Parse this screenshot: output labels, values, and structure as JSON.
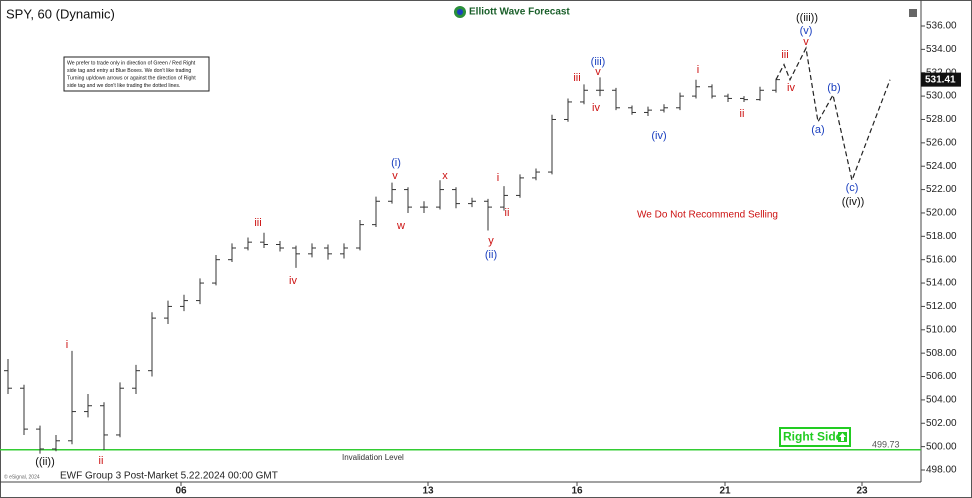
{
  "chart_data": {
    "type": "candlestick",
    "title": "SPY, 60 (Dynamic)",
    "brand": "Elliott Wave Forecast",
    "footer": "EWF Group 3 Post-Market 5.22.2024 00:00 GMT",
    "copyright": "© eSignal, 2024",
    "note": [
      "We prefer to trade only in direction of Green / Red Right",
      "side tag and entry at Blue Boxes. We don't like trading",
      "Turning up/down arrows or against the direction of Right",
      "side tag and we don't like trading the dotted lines."
    ],
    "warning": "We Do Not Recommend Selling",
    "invalidation": {
      "label": "Invalidation Level",
      "value": 499.73,
      "value_label": "499.73",
      "color": "#33cc33"
    },
    "right_side": {
      "label": "Right Side",
      "color": "#22cc22"
    },
    "last_price": 531.41,
    "last_price_label": "531.41",
    "color": "#333333",
    "open": [
      506.5,
      505,
      501.5,
      499.8,
      500.5,
      503,
      503.5,
      501,
      505,
      506.5,
      511,
      512,
      512.5,
      514,
      516,
      517,
      517.5,
      517.3,
      517,
      516.5,
      517,
      516.5,
      517,
      519,
      521,
      522,
      520.5,
      520.5,
      522,
      520.8,
      521,
      520.5,
      521.5,
      523,
      523.5,
      528,
      529.5,
      530.5,
      530.5,
      529,
      528.6,
      528.8,
      529,
      530,
      530.8,
      530,
      529.8,
      529.7,
      530.5
    ],
    "high": [
      507.5,
      505.3,
      501.8,
      501,
      508.2,
      504.5,
      503.8,
      505.5,
      507,
      511.5,
      512.5,
      513,
      514.4,
      516.4,
      517.4,
      517.9,
      518.3,
      517.6,
      517.2,
      517.4,
      517.3,
      517.4,
      519.4,
      521.4,
      522.6,
      522.2,
      521,
      522.8,
      522.2,
      521.3,
      521.2,
      522.3,
      523.3,
      523.8,
      528.4,
      529.8,
      531,
      531.6,
      530.7,
      529.2,
      529.1,
      529.3,
      530.3,
      531.4,
      531,
      530.2,
      530,
      530.8,
      531.5
    ],
    "low": [
      504.5,
      501,
      499.4,
      499.6,
      500.2,
      502.5,
      499.7,
      500.8,
      504.5,
      506,
      510.5,
      511.6,
      512.2,
      513.8,
      515.8,
      516.8,
      517,
      516.7,
      515.3,
      516.2,
      516,
      516.1,
      516.8,
      518.8,
      520.8,
      520,
      520,
      520.3,
      520.4,
      520.5,
      518.5,
      520.2,
      521.3,
      522.8,
      523.3,
      527.8,
      529.3,
      530,
      528.8,
      528.4,
      528.3,
      528.6,
      528.8,
      529.8,
      529.8,
      529.5,
      529.5,
      529.6,
      530.3
    ],
    "close": [
      505,
      501.5,
      499.8,
      500.5,
      503,
      503.5,
      501,
      505,
      506.5,
      511,
      512,
      512.5,
      514,
      516,
      517,
      517.5,
      517.3,
      517,
      516.5,
      517,
      516.5,
      517,
      519,
      521,
      522,
      520.5,
      520.5,
      522,
      520.8,
      521,
      520.5,
      521.5,
      523,
      523.5,
      528,
      529.5,
      530.5,
      530.5,
      529,
      528.6,
      528.8,
      529,
      530,
      530.8,
      530,
      529.8,
      529.7,
      530.5,
      531.41
    ],
    "projection": [
      531.41,
      532.7,
      531.4,
      534.1,
      527.8,
      530.1,
      522.8,
      531.4
    ],
    "waves": [
      {
        "text": "((ii))",
        "color": "#111111"
      },
      {
        "text": "i",
        "color": "#cc1111"
      },
      {
        "text": "ii",
        "color": "#cc1111"
      },
      {
        "text": "iii",
        "color": "#cc1111"
      },
      {
        "text": "iv",
        "color": "#cc1111"
      },
      {
        "text": "(i)",
        "color": "#1a3fbf"
      },
      {
        "text": "v",
        "color": "#cc1111"
      },
      {
        "text": "w",
        "color": "#cc1111"
      },
      {
        "text": "x",
        "color": "#cc1111"
      },
      {
        "text": "y",
        "color": "#cc1111"
      },
      {
        "text": "(ii)",
        "color": "#1a3fbf"
      },
      {
        "text": "i",
        "color": "#cc1111"
      },
      {
        "text": "ii",
        "color": "#cc1111"
      },
      {
        "text": "iii",
        "color": "#cc1111"
      },
      {
        "text": "v",
        "color": "#cc1111"
      },
      {
        "text": "(iii)",
        "color": "#1a3fbf"
      },
      {
        "text": "iv",
        "color": "#cc1111"
      },
      {
        "text": "(iv)",
        "color": "#1a3fbf"
      },
      {
        "text": "i",
        "color": "#cc1111"
      },
      {
        "text": "ii",
        "color": "#cc1111"
      },
      {
        "text": "iii",
        "color": "#cc1111"
      },
      {
        "text": "iv",
        "color": "#cc1111"
      },
      {
        "text": "v",
        "color": "#cc1111"
      },
      {
        "text": "(v)",
        "color": "#1a3fbf"
      },
      {
        "text": "((iii))",
        "color": "#111111"
      },
      {
        "text": "(a)",
        "color": "#1a3fbf"
      },
      {
        "text": "(b)",
        "color": "#1a3fbf"
      },
      {
        "text": "(c)",
        "color": "#1a3fbf"
      },
      {
        "text": "((iv))",
        "color": "#111111"
      }
    ],
    "xtick_labels": [
      "06",
      "13",
      "16",
      "21",
      "23"
    ],
    "ylim": [
      498,
      536
    ],
    "yticks": [
      {
        "value": 498,
        "label": "498.00"
      },
      {
        "value": 500,
        "label": "500.00"
      },
      {
        "value": 502,
        "label": "502.00"
      },
      {
        "value": 504,
        "label": "504.00"
      },
      {
        "value": 506,
        "label": "506.00"
      },
      {
        "value": 508,
        "label": "508.00"
      },
      {
        "value": 510,
        "label": "510.00"
      },
      {
        "value": 512,
        "label": "512.00"
      },
      {
        "value": 514,
        "label": "514.00"
      },
      {
        "value": 516,
        "label": "516.00"
      },
      {
        "value": 518,
        "label": "518.00"
      },
      {
        "value": 520,
        "label": "520.00"
      },
      {
        "value": 522,
        "label": "522.00"
      },
      {
        "value": 524,
        "label": "524.00"
      },
      {
        "value": 526,
        "label": "526.00"
      },
      {
        "value": 528,
        "label": "528.00"
      },
      {
        "value": 530,
        "label": "530.00"
      },
      {
        "value": 532,
        "label": "532.00"
      },
      {
        "value": 534,
        "label": "534.00"
      },
      {
        "value": 536,
        "label": "536.00"
      }
    ]
  }
}
